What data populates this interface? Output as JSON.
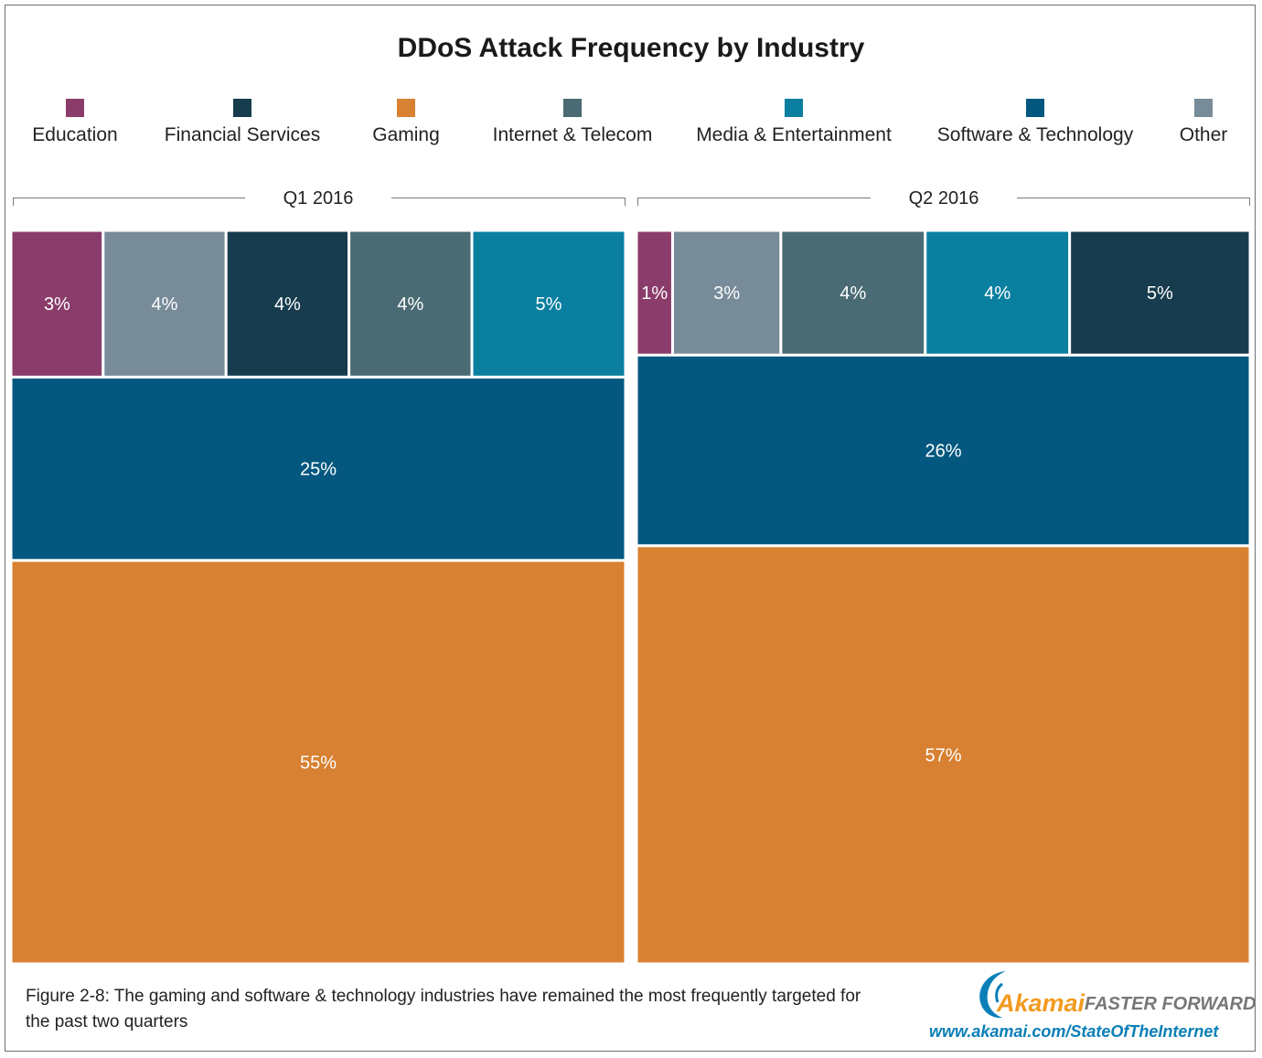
{
  "chart_data": {
    "type": "treemap",
    "title": "DDoS Attack Frequency by Industry",
    "legend": [
      {
        "name": "Education",
        "color": "#8a3c6a"
      },
      {
        "name": "Financial Services",
        "color": "#173c4e"
      },
      {
        "name": "Gaming",
        "color": "#d88132"
      },
      {
        "name": "Internet & Telecom",
        "color": "#4a6b73"
      },
      {
        "name": "Media & Entertainment",
        "color": "#0a7fa0"
      },
      {
        "name": "Software & Technology",
        "color": "#04587f"
      },
      {
        "name": "Other",
        "color": "#778b99"
      }
    ],
    "panels": [
      {
        "label": "Q1 2016",
        "top_row": [
          {
            "industry": "Education",
            "value": 3,
            "label": "3%"
          },
          {
            "industry": "Other",
            "value": 4,
            "label": "4%"
          },
          {
            "industry": "Financial Services",
            "value": 4,
            "label": "4%"
          },
          {
            "industry": "Internet & Telecom",
            "value": 4,
            "label": "4%"
          },
          {
            "industry": "Media & Entertainment",
            "value": 5,
            "label": "5%"
          }
        ],
        "middle": {
          "industry": "Software & Technology",
          "value": 25,
          "label": "25%"
        },
        "bottom": {
          "industry": "Gaming",
          "value": 55,
          "label": "55%"
        }
      },
      {
        "label": "Q2 2016",
        "top_row": [
          {
            "industry": "Education",
            "value": 1,
            "label": "1%"
          },
          {
            "industry": "Other",
            "value": 3,
            "label": "3%"
          },
          {
            "industry": "Internet & Telecom",
            "value": 4,
            "label": "4%"
          },
          {
            "industry": "Media & Entertainment",
            "value": 4,
            "label": "4%"
          },
          {
            "industry": "Financial Services",
            "value": 5,
            "label": "5%"
          }
        ],
        "middle": {
          "industry": "Software & Technology",
          "value": 26,
          "label": "26%"
        },
        "bottom": {
          "industry": "Gaming",
          "value": 57,
          "label": "57%"
        }
      }
    ]
  },
  "caption": "Figure 2-8: The gaming and software & technology industries have remained the most frequently targeted for the past two quarters",
  "brand": {
    "name": "Akamai",
    "tagline": "FASTER FORWARD",
    "url": "www.akamai.com/StateOfTheInternet",
    "color": "#f29a1f"
  }
}
